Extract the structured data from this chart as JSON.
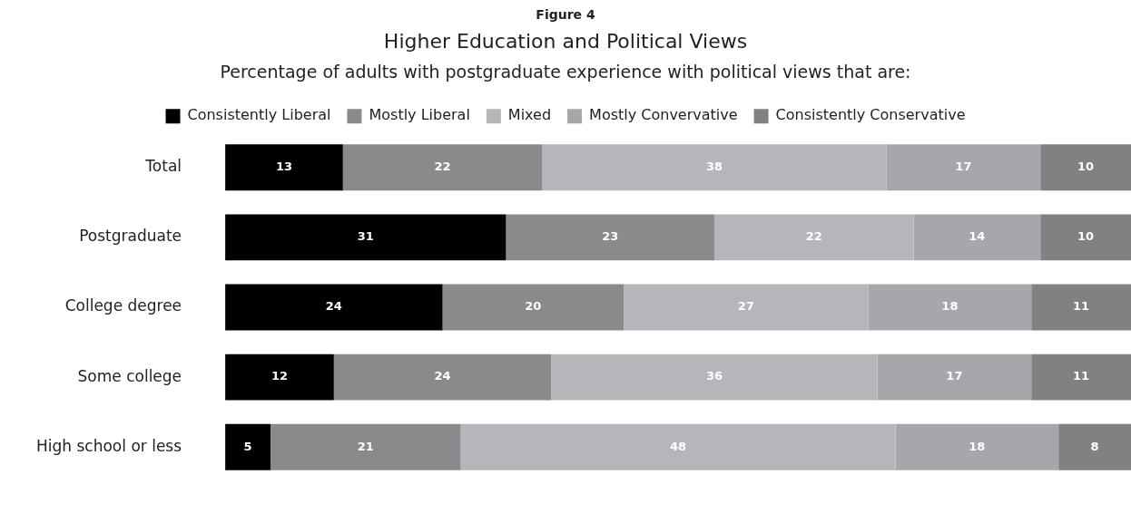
{
  "chart_data": {
    "type": "bar",
    "orientation": "horizontal",
    "stacked": true,
    "title": "Higher Education and Political Views",
    "subtitle": "Percentage of adults with postgraduate experience with political views that are:",
    "annotations": [
      "Figure 4"
    ],
    "categories": [
      "Total",
      "Postgraduate",
      "College degree",
      "Some college",
      "High school or less"
    ],
    "series": [
      {
        "name": "Consistently Liberal",
        "color": "#000000",
        "values": [
          13,
          31,
          24,
          12,
          5
        ]
      },
      {
        "name": "Mostly Liberal",
        "color": "#8a8a8d",
        "values": [
          22,
          23,
          20,
          24,
          21
        ]
      },
      {
        "name": "Mixed",
        "color": "#b5b6b9",
        "values": [
          38,
          22,
          27,
          36,
          48
        ]
      },
      {
        "name": "Mostly Convervative",
        "color": "#a6a7aa",
        "values": [
          17,
          14,
          18,
          17,
          18
        ]
      },
      {
        "name": "Consistently Conservative",
        "color": "#818184",
        "values": [
          10,
          10,
          11,
          11,
          8
        ]
      }
    ],
    "xlim": [
      0,
      100
    ],
    "data_labels": true,
    "legend": "top",
    "grid": false,
    "tick_labels": "y"
  }
}
